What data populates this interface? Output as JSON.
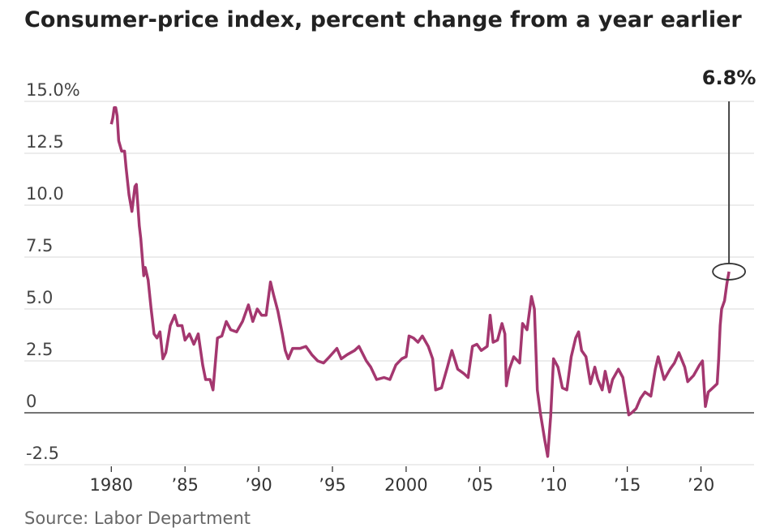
{
  "chart_data": {
    "type": "line",
    "title": "Consumer-price index, percent change from a year earlier",
    "source": "Source: Labor Department",
    "annotation": "6.8%",
    "x": [
      1980.0,
      1980.1,
      1980.2,
      1980.3,
      1980.4,
      1980.5,
      1980.7,
      1980.9,
      1981.0,
      1981.2,
      1981.4,
      1981.6,
      1981.7,
      1981.9,
      1982.0,
      1982.2,
      1982.3,
      1982.5,
      1982.7,
      1982.9,
      1983.1,
      1983.3,
      1983.5,
      1983.7,
      1984.0,
      1984.3,
      1984.5,
      1984.8,
      1985.0,
      1985.3,
      1985.6,
      1985.9,
      1986.2,
      1986.4,
      1986.7,
      1986.9,
      1987.2,
      1987.5,
      1987.8,
      1988.1,
      1988.5,
      1988.9,
      1989.3,
      1989.6,
      1989.9,
      1990.2,
      1990.5,
      1990.8,
      1991.0,
      1991.3,
      1991.6,
      1991.8,
      1992.0,
      1992.3,
      1992.8,
      1993.2,
      1993.6,
      1994.0,
      1994.4,
      1994.8,
      1995.3,
      1995.6,
      1996.0,
      1996.5,
      1996.8,
      1997.3,
      1997.6,
      1998.0,
      1998.5,
      1998.9,
      1999.3,
      1999.7,
      2000.0,
      2000.2,
      2000.5,
      2000.8,
      2001.1,
      2001.5,
      2001.8,
      2002.0,
      2002.4,
      2002.8,
      2003.1,
      2003.5,
      2003.9,
      2004.2,
      2004.5,
      2004.8,
      2005.1,
      2005.5,
      2005.7,
      2005.9,
      2006.2,
      2006.5,
      2006.7,
      2006.8,
      2007.0,
      2007.3,
      2007.7,
      2007.9,
      2008.2,
      2008.5,
      2008.7,
      2008.9,
      2009.1,
      2009.4,
      2009.6,
      2009.8,
      2010.0,
      2010.3,
      2010.6,
      2010.9,
      2011.2,
      2011.5,
      2011.7,
      2011.9,
      2012.2,
      2012.5,
      2012.8,
      2013.0,
      2013.3,
      2013.5,
      2013.8,
      2014.0,
      2014.4,
      2014.7,
      2014.9,
      2015.1,
      2015.3,
      2015.6,
      2015.9,
      2016.2,
      2016.6,
      2016.9,
      2017.1,
      2017.5,
      2017.9,
      2018.2,
      2018.5,
      2018.9,
      2019.1,
      2019.5,
      2019.9,
      2020.1,
      2020.3,
      2020.5,
      2020.8,
      2021.1,
      2021.2,
      2021.3,
      2021.4,
      2021.6,
      2021.75,
      2021.9
    ],
    "series": [
      {
        "name": "CPI",
        "color": "#a4376f",
        "values": [
          13.9,
          14.2,
          14.7,
          14.7,
          14.3,
          13.1,
          12.6,
          12.6,
          11.8,
          10.5,
          9.7,
          10.9,
          11.0,
          9.0,
          8.4,
          6.6,
          7.0,
          6.4,
          5.0,
          3.8,
          3.6,
          3.9,
          2.6,
          2.9,
          4.2,
          4.7,
          4.2,
          4.2,
          3.5,
          3.8,
          3.3,
          3.8,
          2.3,
          1.6,
          1.6,
          1.1,
          3.6,
          3.7,
          4.4,
          4.0,
          3.9,
          4.4,
          5.2,
          4.4,
          5.0,
          4.7,
          4.7,
          6.3,
          5.7,
          4.9,
          3.8,
          3.0,
          2.6,
          3.1,
          3.1,
          3.2,
          2.8,
          2.5,
          2.4,
          2.7,
          3.1,
          2.6,
          2.8,
          3.0,
          3.2,
          2.5,
          2.2,
          1.6,
          1.7,
          1.6,
          2.3,
          2.6,
          2.7,
          3.7,
          3.6,
          3.4,
          3.7,
          3.2,
          2.6,
          1.1,
          1.2,
          2.2,
          3.0,
          2.1,
          1.9,
          1.7,
          3.2,
          3.3,
          3.0,
          3.2,
          4.7,
          3.4,
          3.5,
          4.3,
          3.8,
          1.3,
          2.1,
          2.7,
          2.4,
          4.3,
          4.0,
          5.6,
          5.0,
          1.1,
          0.0,
          -1.3,
          -2.1,
          -0.2,
          2.6,
          2.2,
          1.2,
          1.1,
          2.7,
          3.6,
          3.9,
          3.0,
          2.7,
          1.4,
          2.2,
          1.6,
          1.1,
          2.0,
          1.0,
          1.6,
          2.1,
          1.7,
          0.8,
          -0.1,
          0.0,
          0.2,
          0.7,
          1.0,
          0.8,
          2.1,
          2.7,
          1.6,
          2.1,
          2.4,
          2.9,
          2.2,
          1.5,
          1.8,
          2.3,
          2.5,
          0.3,
          1.0,
          1.2,
          1.4,
          2.6,
          4.2,
          5.0,
          5.4,
          6.2,
          6.8
        ]
      }
    ],
    "xlim": [
      1974.1,
      2023.6
    ],
    "xticks": [
      1980,
      {
        "value": 1985,
        "label": "’85"
      },
      {
        "value": 1990,
        "label": "’90"
      },
      {
        "value": 1995,
        "label": "’95"
      },
      2000,
      {
        "value": 2005,
        "label": "’05"
      },
      {
        "value": 2010,
        "label": "’10"
      },
      {
        "value": 2015,
        "label": "’15"
      },
      {
        "value": 2020,
        "label": "’20"
      }
    ],
    "ylim": [
      -2.5,
      15
    ],
    "yticks": [
      -2.5,
      0,
      2.5,
      {
        "value": 5,
        "label": "5.0"
      },
      7.5,
      {
        "value": 10,
        "label": "10.0"
      },
      12.5,
      {
        "value": 15,
        "label": "15.0%"
      }
    ],
    "grid": true
  }
}
